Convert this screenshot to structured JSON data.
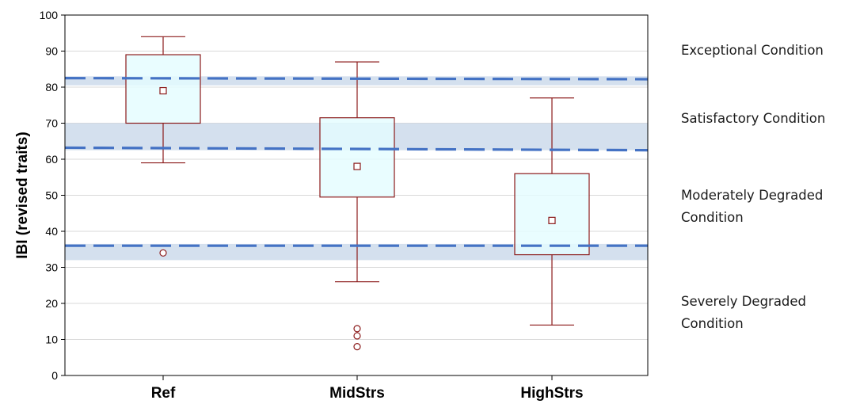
{
  "chart_data": {
    "type": "box",
    "ylabel": "IBI (revised traits)",
    "xlabel": "",
    "ylim": [
      0,
      100
    ],
    "yticks": [
      0,
      10,
      20,
      30,
      40,
      50,
      60,
      70,
      80,
      90,
      100
    ],
    "grid": "horizontal",
    "categories": [
      "Ref",
      "MidStrs",
      "HighStrs"
    ],
    "boxes": [
      {
        "category": "Ref",
        "whisker_low": 59,
        "q1": 70,
        "mean": 79,
        "q3": 89,
        "whisker_high": 94,
        "outliers": [
          34
        ]
      },
      {
        "category": "MidStrs",
        "whisker_low": 26,
        "q1": 49.5,
        "mean": 58,
        "q3": 71.5,
        "whisker_high": 87,
        "outliers": [
          13,
          11,
          8
        ]
      },
      {
        "category": "HighStrs",
        "whisker_low": 14,
        "q1": 33.5,
        "mean": 43,
        "q3": 56,
        "whisker_high": 77,
        "outliers": []
      }
    ],
    "bands": [
      {
        "low": 80.5,
        "high": 83
      },
      {
        "low": 62.5,
        "high": 70
      },
      {
        "low": 32,
        "high": 36.5
      }
    ],
    "thresholds": [
      {
        "start": 82.5,
        "end": 82.2
      },
      {
        "start": 63.2,
        "end": 62.5
      },
      {
        "start": 36,
        "end": 36
      }
    ],
    "zones": [
      {
        "lines": [
          "Exceptional Condition"
        ]
      },
      {
        "lines": [
          "Satisfactory Condition"
        ]
      },
      {
        "lines": [
          "Moderately Degraded",
          "Condition"
        ]
      },
      {
        "lines": [
          "Severely Degraded",
          "Condition"
        ]
      }
    ],
    "colors": {
      "box_fill": "#e3fcff",
      "box_stroke": "#8b1a1a",
      "band": "#c6d6e8",
      "threshold": "#4472c4",
      "grid": "#d9d9d9"
    }
  }
}
